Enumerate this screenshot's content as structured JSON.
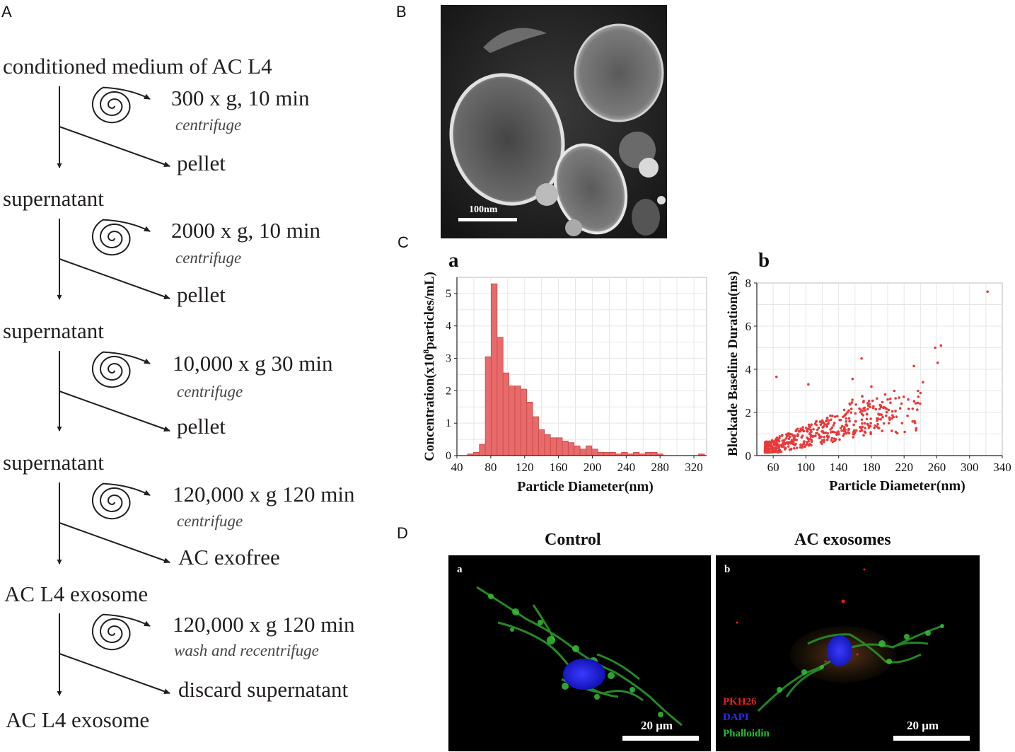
{
  "panels": {
    "A": "A",
    "B": "B",
    "C": "C",
    "D": "D"
  },
  "flow": {
    "start": "conditioned medium of AC L4",
    "steps": [
      {
        "speed": "300 x g, 10 min",
        "note": "centrifuge",
        "branch": "pellet",
        "result": "supernatant"
      },
      {
        "speed": "2000 x g, 10 min",
        "note": "centrifuge",
        "branch": "pellet",
        "result": "supernatant"
      },
      {
        "speed": "10,000 x g 30 min",
        "note": "centrifuge",
        "branch": "pellet",
        "result": "supernatant"
      },
      {
        "speed": "120,000 x g 120 min",
        "note": "centrifuge",
        "branch": "AC exofree",
        "result": "AC L4 exosome"
      },
      {
        "speed": "120,000 x g 120 min",
        "note": "wash and recentrifuge",
        "branch": "discard supernatant",
        "result": "AC L4 exosome"
      }
    ]
  },
  "tem": {
    "scale_label": "100nm"
  },
  "chart_data": [
    {
      "type": "bar",
      "panel": "a",
      "xlabel": "Particle Diameter(nm)",
      "ylabel_pre": "Concentration(",
      "ylabel_x": "x",
      "ylabel_10": "10",
      "ylabel_exp": "8",
      "ylabel_post": "particles/mL)",
      "xlim": [
        40,
        335
      ],
      "ylim": [
        0,
        5.5
      ],
      "xticks": [
        40,
        80,
        120,
        160,
        200,
        240,
        280,
        320
      ],
      "yticks": [
        0,
        1,
        2,
        3,
        4,
        5
      ],
      "bin_width": 7,
      "bins": [
        {
          "x": 56,
          "y": 0.05
        },
        {
          "x": 63,
          "y": 0.1
        },
        {
          "x": 70,
          "y": 0.35
        },
        {
          "x": 77,
          "y": 3.05
        },
        {
          "x": 84,
          "y": 5.3
        },
        {
          "x": 91,
          "y": 3.65
        },
        {
          "x": 98,
          "y": 2.55
        },
        {
          "x": 105,
          "y": 2.15
        },
        {
          "x": 112,
          "y": 2.15
        },
        {
          "x": 119,
          "y": 2.05
        },
        {
          "x": 126,
          "y": 1.65
        },
        {
          "x": 133,
          "y": 1.2
        },
        {
          "x": 140,
          "y": 0.8
        },
        {
          "x": 147,
          "y": 0.65
        },
        {
          "x": 154,
          "y": 0.55
        },
        {
          "x": 161,
          "y": 0.55
        },
        {
          "x": 168,
          "y": 0.45
        },
        {
          "x": 175,
          "y": 0.4
        },
        {
          "x": 182,
          "y": 0.3
        },
        {
          "x": 189,
          "y": 0.2
        },
        {
          "x": 196,
          "y": 0.3
        },
        {
          "x": 203,
          "y": 0.2
        },
        {
          "x": 210,
          "y": 0.1
        },
        {
          "x": 217,
          "y": 0.1
        },
        {
          "x": 224,
          "y": 0.1
        },
        {
          "x": 231,
          "y": 0.05
        },
        {
          "x": 238,
          "y": 0.1
        },
        {
          "x": 245,
          "y": 0.05
        },
        {
          "x": 252,
          "y": 0.1
        },
        {
          "x": 259,
          "y": 0.05
        },
        {
          "x": 266,
          "y": 0.1
        },
        {
          "x": 273,
          "y": 0.1
        },
        {
          "x": 280,
          "y": 0.05
        },
        {
          "x": 329,
          "y": 0.05
        }
      ],
      "color": "#e86a6a",
      "grid": true
    },
    {
      "type": "scatter",
      "panel": "b",
      "xlabel": "Particle Diameter(nm)",
      "ylabel": "Blockade Baseline Duration(ms)",
      "xlim": [
        40,
        340
      ],
      "ylim": [
        0,
        8
      ],
      "xticks": [
        60,
        100,
        140,
        180,
        220,
        260,
        300,
        340
      ],
      "yticks": [
        0,
        2,
        4,
        6,
        8
      ],
      "color": "#e8393a",
      "grid": true,
      "highlighted_points": [
        {
          "x": 322,
          "y": 7.6
        },
        {
          "x": 265,
          "y": 5.1
        },
        {
          "x": 258,
          "y": 5.0
        },
        {
          "x": 261,
          "y": 4.3
        },
        {
          "x": 168,
          "y": 4.5
        },
        {
          "x": 232,
          "y": 4.15
        },
        {
          "x": 243,
          "y": 3.4
        },
        {
          "x": 240,
          "y": 2.9
        },
        {
          "x": 64,
          "y": 3.65
        },
        {
          "x": 180,
          "y": 3.2
        },
        {
          "x": 157,
          "y": 3.55
        },
        {
          "x": 103,
          "y": 3.3
        },
        {
          "x": 208,
          "y": 3.0
        },
        {
          "x": 225,
          "y": 2.6
        },
        {
          "x": 237,
          "y": 3.0
        },
        {
          "x": 200,
          "y": 2.6
        }
      ],
      "cluster": {
        "x_range": [
          50,
          200
        ],
        "y_range": [
          0.2,
          3.0
        ],
        "count": 420
      }
    }
  ],
  "microscopy": {
    "left_title": "Control",
    "right_title": "AC exosomes",
    "left_label": "a",
    "right_label": "b",
    "scale": "20 μm",
    "legend": [
      {
        "text": "PKH26",
        "color": "#e02020"
      },
      {
        "text": "DAPI",
        "color": "#2a2aff"
      },
      {
        "text": "Phalloidin",
        "color": "#1fbf2a"
      }
    ]
  }
}
